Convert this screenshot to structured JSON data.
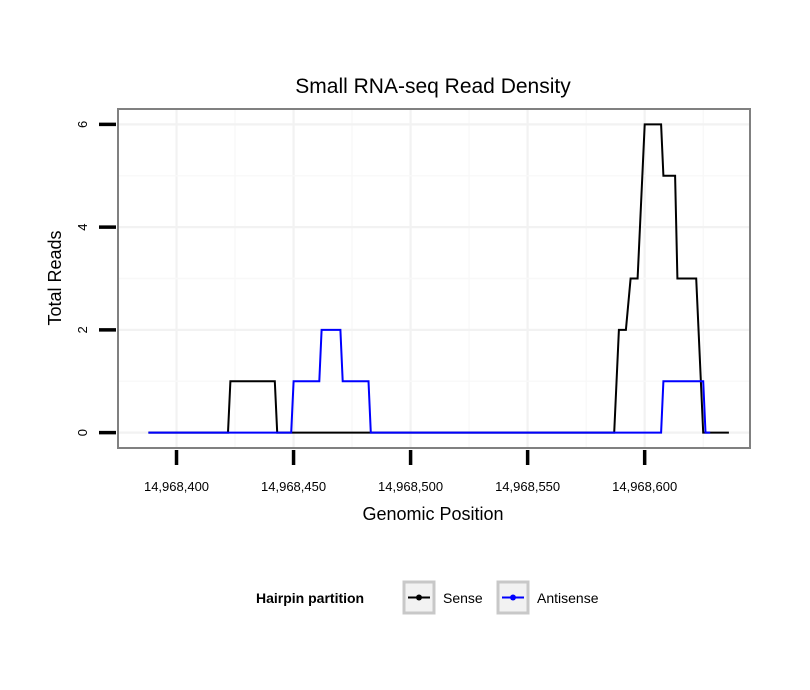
{
  "chart_data": {
    "type": "line",
    "title": "Small RNA-seq Read Density",
    "xlabel": "Genomic Position",
    "ylabel": "Total Reads",
    "xlim": [
      14968375,
      14968645
    ],
    "ylim": [
      -0.3,
      6.3
    ],
    "x_ticks": [
      14968400,
      14968450,
      14968500,
      14968550,
      14968600
    ],
    "x_tick_labels": [
      "14,968,400",
      "14,968,450",
      "14,968,500",
      "14,968,550",
      "14,968,600"
    ],
    "y_ticks": [
      0,
      2,
      4,
      6
    ],
    "y_tick_labels": [
      "0",
      "2",
      "4",
      "6"
    ],
    "grid": true,
    "legend": {
      "title": "Hairpin partition",
      "position": "bottom"
    },
    "series": [
      {
        "name": "Sense",
        "color": "#000000",
        "x": [
          14968388,
          14968422,
          14968423,
          14968442,
          14968443,
          14968587,
          14968589,
          14968592,
          14968594,
          14968597,
          14968600,
          14968601,
          14968607,
          14968608,
          14968613,
          14968614,
          14968620,
          14968622,
          14968625,
          14968636
        ],
        "y": [
          0,
          0,
          1,
          1,
          0,
          0,
          2,
          2,
          3,
          3,
          6,
          6,
          6,
          5,
          5,
          3,
          3,
          3,
          0,
          0
        ]
      },
      {
        "name": "Antisense",
        "color": "#0000ff",
        "x": [
          14968388,
          14968449,
          14968450,
          14968461,
          14968462,
          14968470,
          14968471,
          14968482,
          14968483,
          14968607,
          14968608,
          14968625,
          14968626,
          14968628
        ],
        "y": [
          0,
          0,
          1,
          1,
          2,
          2,
          1,
          1,
          0,
          0,
          1,
          1,
          0,
          0
        ]
      }
    ]
  }
}
